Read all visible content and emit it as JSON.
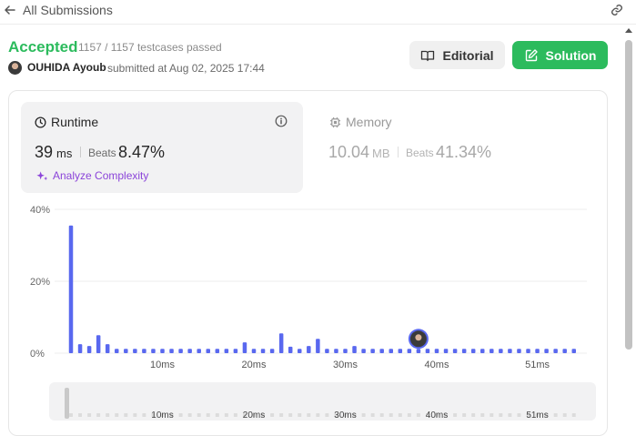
{
  "topbar": {
    "title": "All Submissions",
    "back_icon": "arrow-left-icon",
    "link_icon": "link-icon"
  },
  "submission": {
    "status": "Accepted",
    "testcases": "1157 / 1157 testcases passed",
    "username": "OUHIDA Ayoub",
    "submitted_text": "submitted at Aug 02, 2025 17:44"
  },
  "buttons": {
    "editorial": "Editorial",
    "solution": "Solution"
  },
  "runtime": {
    "label": "Runtime",
    "value": "39",
    "unit": "ms",
    "beats_label": "Beats",
    "beats_pct": "8.47%"
  },
  "memory": {
    "label": "Memory",
    "value": "10.04",
    "unit": "MB",
    "beats_label": "Beats",
    "beats_pct": "41.34%"
  },
  "analyze_label": "Analyze Complexity",
  "colors": {
    "accepted": "#2cbb5d",
    "bar": "#5968ef",
    "analyze": "#8b44d9"
  },
  "chart_data": {
    "type": "bar",
    "ylabel_ticks": [
      "0%",
      "20%",
      "40%"
    ],
    "ylim": [
      0,
      40
    ],
    "x_tick_labels": [
      "10ms",
      "20ms",
      "30ms",
      "40ms",
      "51ms"
    ],
    "values": [
      35.5,
      2.5,
      2,
      5,
      2.5,
      1.2,
      1.2,
      1.2,
      1.2,
      1.2,
      1.2,
      1.2,
      1.2,
      1.2,
      1.2,
      1.2,
      1.2,
      1.2,
      1.2,
      3,
      1.2,
      1.2,
      1.2,
      5.5,
      1.8,
      1.2,
      2,
      4,
      1.2,
      1.2,
      1.2,
      2,
      1.2,
      1.2,
      1.2,
      1.2,
      1.2,
      1.2,
      1.2,
      1.2,
      1.2,
      1.2,
      1.2,
      1.2,
      1.2,
      1.2,
      1.2,
      1.2,
      1.2,
      1.2,
      1.2,
      1.2,
      1.2,
      1.2,
      1.2,
      1.2
    ],
    "highlight_index": 38,
    "minimap_labels": [
      "10ms",
      "20ms",
      "30ms",
      "40ms",
      "51ms"
    ]
  }
}
